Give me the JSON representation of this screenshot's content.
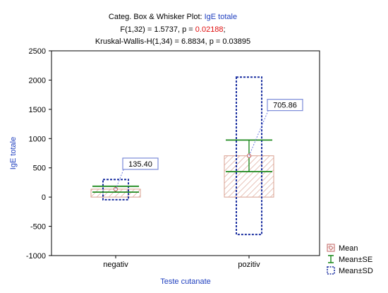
{
  "chart_data": {
    "type": "box",
    "title": {
      "prefix": "Categ. Box & Whisker Plot: ",
      "variable": "IgE totale",
      "line2_prefix": "F(1,32) = 1.5737, p = ",
      "line2_p": "0.02188",
      "line2_suffix": ";",
      "line3": "Kruskal-Wallis-H(1,34) = 6.8834, p = 0.03895"
    },
    "xlabel": "Teste cutanate",
    "ylabel": "IgE totale",
    "ylim": [
      -1000,
      2500
    ],
    "yticks": [
      "-1000",
      "-500",
      "0",
      "500",
      "1000",
      "1500",
      "2000",
      "2500"
    ],
    "categories": [
      "negativ",
      "pozitiv"
    ],
    "series": [
      {
        "name": "Mean",
        "values": [
          135.4,
          705.86
        ]
      },
      {
        "name": "Mean±SE",
        "lower": [
          85,
          435
        ],
        "upper": [
          185,
          975
        ]
      },
      {
        "name": "Mean±SD",
        "lower": [
          -45,
          -640
        ],
        "upper": [
          300,
          2050
        ]
      }
    ],
    "data_labels": [
      "135.40",
      "705.86"
    ],
    "legend": [
      "Mean",
      "Mean±SE",
      "Mean±SD"
    ],
    "legend_position": "bottom-right",
    "grid": false,
    "colors": {
      "bar_hatch": "#d9a090",
      "se": "#1f8a1f",
      "sd": "#1a2fa0",
      "mean_marker": "#c06060",
      "label_border": "#7a8ad8",
      "title_accent": "#1f3fbf",
      "p_value": "#e01010"
    }
  }
}
